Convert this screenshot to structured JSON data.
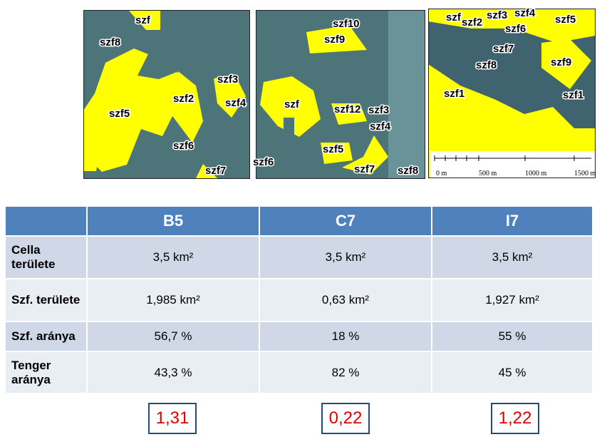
{
  "maps": [
    {
      "labels": [
        "szf",
        "szf8",
        "szf3",
        "szf2",
        "szf5",
        "szf4",
        "szf6",
        "szf7"
      ]
    },
    {
      "labels": [
        "szf10",
        "szf9",
        "szf",
        "szf12",
        "szf3",
        "szf4",
        "szf5",
        "szf6",
        "szf7",
        "szf8"
      ]
    },
    {
      "labels": [
        "szf",
        "szf2",
        "szf3",
        "szf4",
        "szf5",
        "szf6",
        "szf7",
        "szf8",
        "szf9",
        "szf1",
        "szf1"
      ],
      "scale_labels": [
        "0 m",
        "500 m",
        "1000 m",
        "1500 m"
      ]
    }
  ],
  "table": {
    "columns": [
      "B5",
      "C7",
      "I7"
    ],
    "rows": [
      {
        "label": "Cella területe",
        "cells": [
          "3,5 km²",
          "3,5 km²",
          "3,5 km²"
        ]
      },
      {
        "label": "Szf. területe",
        "cells": [
          "1,985 km²",
          "0,63 km²",
          "1,927 km²"
        ]
      },
      {
        "label": "Szf. aránya",
        "cells": [
          "56,7 %",
          "18 %",
          "55 %"
        ]
      },
      {
        "label": "Tenger aránya",
        "cells": [
          "43,3 %",
          "82 %",
          "45 %"
        ]
      }
    ]
  },
  "ratios": [
    "1,31",
    "0,22",
    "1,22"
  ]
}
